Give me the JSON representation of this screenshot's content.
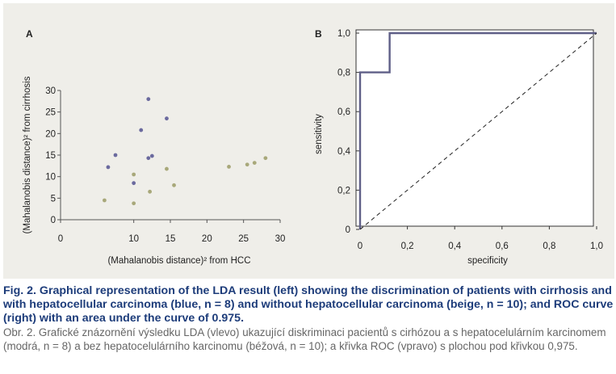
{
  "chart_data": [
    {
      "type": "scatter",
      "panel_label": "A",
      "xlabel": "(Mahalanobis distance)² from HCC",
      "ylabel": "(Mahalanobis distance)² from cirrhosis",
      "xlim": [
        0,
        30
      ],
      "ylim": [
        0,
        30
      ],
      "x_ticks": [
        "0",
        "10",
        "15",
        "20",
        "25",
        "30"
      ],
      "y_ticks": [
        "0",
        "5",
        "10",
        "15",
        "20",
        "25",
        "30"
      ],
      "grid": false,
      "series": [
        {
          "color": "#6b6a9e",
          "points": [
            [
              6.5,
              12.2
            ],
            [
              7.5,
              15.0
            ],
            [
              10.0,
              8.5
            ],
            [
              11.0,
              20.8
            ],
            [
              12.0,
              28.0
            ],
            [
              12.0,
              14.3
            ],
            [
              12.5,
              14.8
            ],
            [
              14.5,
              23.5
            ]
          ]
        },
        {
          "color": "#a8a87a",
          "points": [
            [
              6.0,
              4.5
            ],
            [
              10.0,
              10.5
            ],
            [
              10.0,
              3.8
            ],
            [
              12.2,
              6.5
            ],
            [
              14.5,
              11.8
            ],
            [
              15.5,
              8.0
            ],
            [
              23.0,
              12.3
            ],
            [
              25.5,
              12.8
            ],
            [
              26.5,
              13.2
            ],
            [
              28.0,
              14.3
            ]
          ]
        }
      ]
    },
    {
      "type": "line",
      "panel_label": "B",
      "xlabel": "specificity",
      "ylabel": "sensitivity",
      "xlim": [
        0,
        1
      ],
      "ylim": [
        0,
        1
      ],
      "x_ticks": [
        "0",
        "0,2",
        "0,4",
        "0,6",
        "0,8",
        "1,0"
      ],
      "y_ticks": [
        "0",
        "0,2",
        "0,4",
        "0,6",
        "0,8",
        "1,0"
      ],
      "grid": false,
      "series": [
        {
          "color": "#5f5f87",
          "style": "solid",
          "points": [
            [
              0,
              0
            ],
            [
              0,
              0.8
            ],
            [
              0.125,
              0.8
            ],
            [
              0.125,
              1.0
            ],
            [
              1.0,
              1.0
            ]
          ]
        },
        {
          "color": "#222222",
          "style": "dashed",
          "points": [
            [
              0,
              0
            ],
            [
              1.0,
              1.0
            ]
          ]
        }
      ]
    }
  ],
  "caption": {
    "english": "Fig. 2. Graphical representation of the LDA result (left) showing the discrimination of patients with cirrhosis and with hepatocellular carcinoma (blue, n = 8) and without hepatocellular carcinoma (beige, n = 10); and ROC curve (right) with an area under the curve of 0.975.",
    "czech": "Obr. 2. Grafické znázornění výsledku LDA (vlevo) ukazující diskriminaci pacientů s cirhózou a s hepatocelulárním karcinomem (modrá, n = 8) a bez hepatocelulárního karcinomu (béžová, n = 10); a křivka ROC (vpravo) s plochou pod křivkou 0,975."
  }
}
